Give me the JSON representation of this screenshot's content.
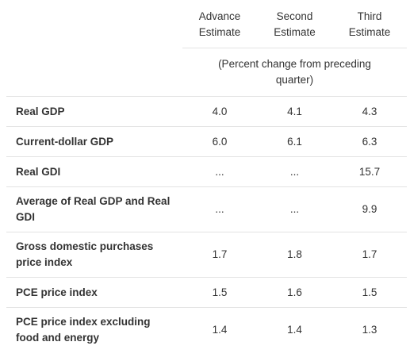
{
  "table": {
    "columns": [
      "Advance Estimate",
      "Second Estimate",
      "Third Estimate"
    ],
    "subheader": "(Percent change from preceding quarter)",
    "rows": [
      {
        "label": "Real GDP",
        "values": [
          "4.0",
          "4.1",
          "4.3"
        ]
      },
      {
        "label": "Current-dollar GDP",
        "values": [
          "6.0",
          "6.1",
          "6.3"
        ]
      },
      {
        "label": "Real GDI",
        "values": [
          "...",
          "...",
          "15.7"
        ]
      },
      {
        "label": "Average of Real GDP and Real GDI",
        "values": [
          "...",
          "...",
          "9.9"
        ]
      },
      {
        "label": "Gross domestic purchases price index",
        "values": [
          "1.7",
          "1.8",
          "1.7"
        ]
      },
      {
        "label": "PCE price index",
        "values": [
          "1.5",
          "1.6",
          "1.5"
        ]
      },
      {
        "label": "PCE price index excluding food and energy",
        "values": [
          "1.4",
          "1.4",
          "1.3"
        ]
      }
    ]
  }
}
